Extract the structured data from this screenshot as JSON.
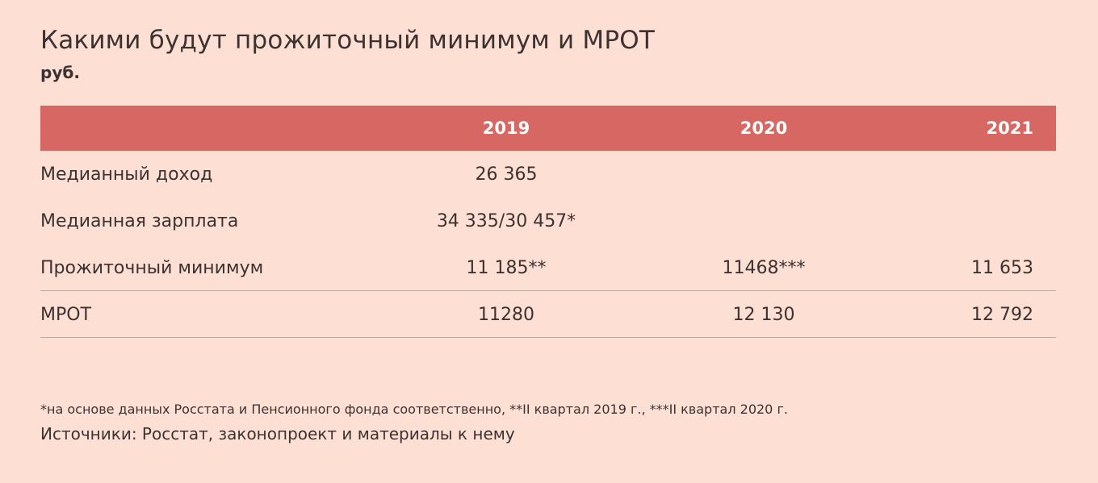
{
  "chart_data": {
    "type": "table",
    "title": "Какими будут прожиточный минимум и МРОТ",
    "subtitle": "руб.",
    "columns": [
      "2019",
      "2020",
      "2021"
    ],
    "rows": [
      {
        "label": "Медианный доход",
        "values": [
          "26 365",
          "",
          ""
        ]
      },
      {
        "label": "Медианная зарплата",
        "values": [
          "34 335/30 457*",
          "",
          ""
        ]
      },
      {
        "label": "Прожиточный минимум",
        "values": [
          "11 185**",
          "11468***",
          "11 653"
        ]
      },
      {
        "label": "МРОТ",
        "values": [
          "11280",
          "12 130",
          "12 792"
        ]
      }
    ],
    "footnote": "*на основе данных Росстата и Пенсионного фонда соответственно, **II квартал 2019 г., ***II квартал 2020 г.",
    "sources": "Источники: Росстат, законопроект и материалы к нему"
  },
  "colors": {
    "background": "#fde0d3",
    "header": "#d66762",
    "text": "#3d3232",
    "rule": "#b8aaa6"
  }
}
